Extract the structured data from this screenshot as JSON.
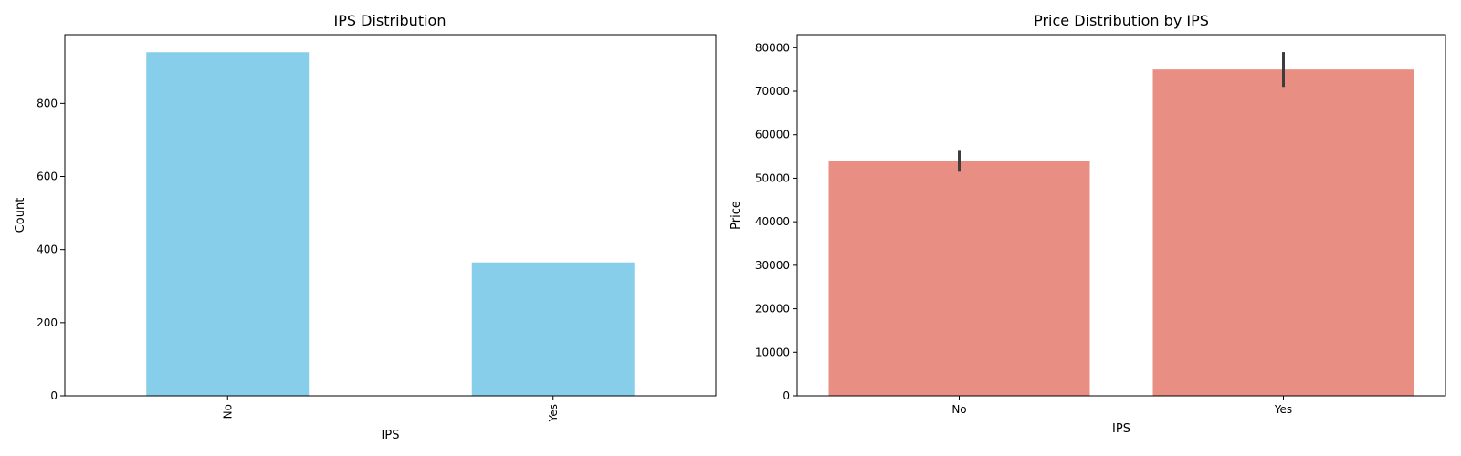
{
  "chart_data": [
    {
      "type": "bar",
      "title": "IPS Distribution",
      "xlabel": "IPS",
      "ylabel": "Count",
      "categories": [
        "No",
        "Yes"
      ],
      "values": [
        940,
        365
      ],
      "ylim": [
        0,
        988
      ],
      "yticks": [
        0,
        200,
        400,
        600,
        800
      ],
      "xtick_rotation": 90,
      "color": "#87ceeb",
      "grid": false
    },
    {
      "type": "bar",
      "title": "Price Distribution by IPS",
      "xlabel": "IPS",
      "ylabel": "Price",
      "categories": [
        "No",
        "Yes"
      ],
      "values": [
        54000,
        75000
      ],
      "error_bars": [
        [
          51500,
          56300
        ],
        [
          71000,
          79000
        ]
      ],
      "ylim": [
        0,
        83000
      ],
      "yticks": [
        0,
        10000,
        20000,
        30000,
        40000,
        50000,
        60000,
        70000,
        80000
      ],
      "xtick_rotation": 0,
      "color": "#e88e82",
      "error_color": "#3d3d3d",
      "grid": false
    }
  ]
}
